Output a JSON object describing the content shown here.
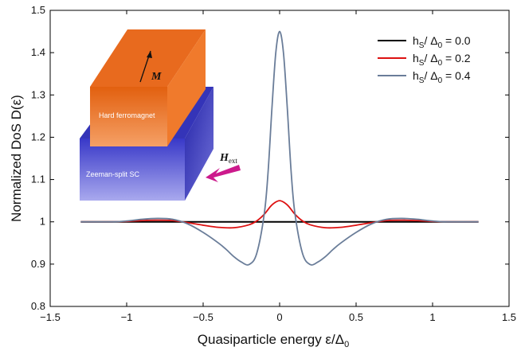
{
  "chart_data": {
    "type": "line",
    "xlabel_text": "Quasiparticle energy ε/Δ",
    "xlabel_sub": "0",
    "ylabel": "Normalized DoS D(ε)",
    "xlim": [
      -1.5,
      1.5
    ],
    "ylim": [
      0.8,
      1.5
    ],
    "x_ticks": [
      -1.5,
      -1,
      -0.5,
      0,
      0.5,
      1,
      1.5
    ],
    "x_tick_labels": [
      "−1.5",
      "−1",
      "−0.5",
      "0",
      "0.5",
      "1",
      "1.5"
    ],
    "y_ticks": [
      0.8,
      0.9,
      1,
      1.1,
      1.2,
      1.3,
      1.4,
      1.5
    ],
    "y_tick_labels": [
      "0.8",
      "0.9",
      "1",
      "1.1",
      "1.2",
      "1.3",
      "1.4",
      "1.5"
    ],
    "grid": false,
    "legend_position": "top-right",
    "series": [
      {
        "name": "hS/Δ0 = 0.0",
        "legend_h": "h",
        "legend_sub1": "S",
        "legend_mid": "/ Δ",
        "legend_sub2": "0",
        "legend_val": "=  0.0",
        "color": "#000000",
        "x": [
          -1.3,
          -1.0,
          -0.5,
          0.0,
          0.5,
          1.0,
          1.3
        ],
        "y": [
          1.0,
          1.0,
          1.0,
          1.0,
          1.0,
          1.0,
          1.0
        ]
      },
      {
        "name": "hS/Δ0 = 0.2",
        "legend_h": "h",
        "legend_sub1": "S",
        "legend_mid": "/ Δ",
        "legend_sub2": "0",
        "legend_val": "=  0.2",
        "color": "#dd1111",
        "x": [
          -1.3,
          -1.1,
          -1.0,
          -0.9,
          -0.8,
          -0.7,
          -0.6,
          -0.5,
          -0.4,
          -0.3,
          -0.2,
          -0.15,
          -0.1,
          -0.05,
          0.0,
          0.05,
          0.1,
          0.15,
          0.2,
          0.3,
          0.4,
          0.5,
          0.6,
          0.7,
          0.8,
          0.9,
          1.0,
          1.1,
          1.3
        ],
        "y": [
          1.0,
          1.0,
          1.001,
          1.003,
          1.004,
          1.003,
          0.998,
          0.992,
          0.987,
          0.986,
          0.993,
          1.002,
          1.018,
          1.04,
          1.05,
          1.04,
          1.018,
          1.002,
          0.993,
          0.986,
          0.987,
          0.992,
          0.998,
          1.003,
          1.004,
          1.003,
          1.001,
          1.0,
          1.0
        ]
      },
      {
        "name": "hS/Δ0 = 0.4",
        "legend_h": "h",
        "legend_sub1": "S",
        "legend_mid": "/ Δ",
        "legend_sub2": "0",
        "legend_val": "=  0.4",
        "color": "#6a7d99",
        "x": [
          -1.3,
          -1.1,
          -1.0,
          -0.9,
          -0.8,
          -0.7,
          -0.6,
          -0.5,
          -0.4,
          -0.35,
          -0.3,
          -0.25,
          -0.2,
          -0.15,
          -0.1,
          -0.075,
          -0.05,
          -0.025,
          0.0,
          0.025,
          0.05,
          0.075,
          0.1,
          0.15,
          0.2,
          0.25,
          0.3,
          0.35,
          0.4,
          0.5,
          0.6,
          0.7,
          0.8,
          0.9,
          1.0,
          1.1,
          1.3
        ],
        "y": [
          1.0,
          1.0,
          1.002,
          1.006,
          1.008,
          1.006,
          0.995,
          0.975,
          0.95,
          0.935,
          0.918,
          0.905,
          0.899,
          0.925,
          1.02,
          1.12,
          1.27,
          1.4,
          1.45,
          1.4,
          1.27,
          1.12,
          1.02,
          0.925,
          0.899,
          0.905,
          0.918,
          0.935,
          0.95,
          0.975,
          0.995,
          1.006,
          1.008,
          1.006,
          1.002,
          1.0,
          1.0
        ]
      }
    ]
  },
  "inset": {
    "top_layer_label": "Hard ferromagnet",
    "bottom_layer_label": "Zeeman-split SC",
    "magnetization_label": "M",
    "field_label": "H",
    "field_sub": "ext",
    "top_color": "#e8651c",
    "bottom_color": "#4747d6",
    "field_arrow_color": "#cc1a8c"
  }
}
